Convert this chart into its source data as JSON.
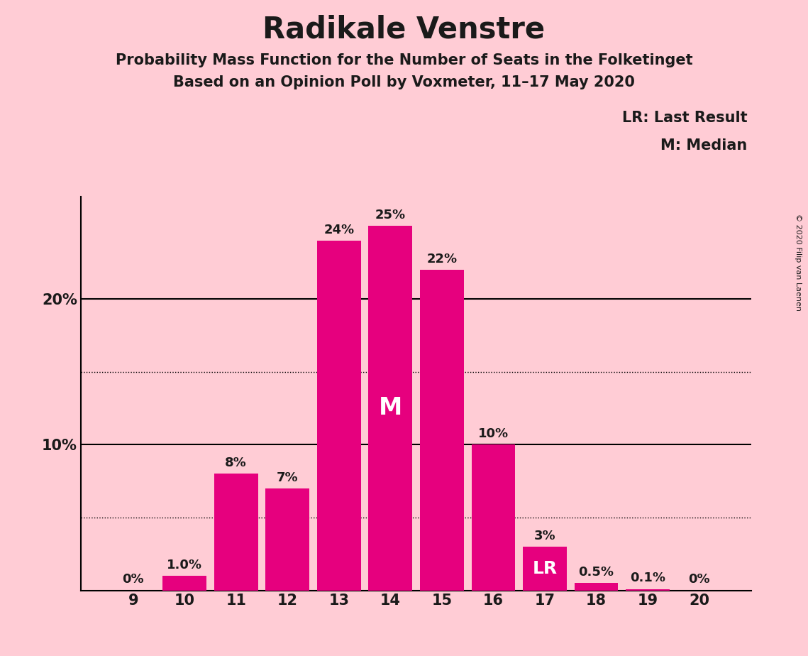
{
  "title": "Radikale Venstre",
  "subtitle1": "Probability Mass Function for the Number of Seats in the Folketinget",
  "subtitle2": "Based on an Opinion Poll by Voxmeter, 11–17 May 2020",
  "copyright": "© 2020 Filip van Laenen",
  "categories": [
    9,
    10,
    11,
    12,
    13,
    14,
    15,
    16,
    17,
    18,
    19,
    20
  ],
  "values": [
    0.0,
    1.0,
    8.0,
    7.0,
    24.0,
    25.0,
    22.0,
    10.0,
    3.0,
    0.5,
    0.1,
    0.0
  ],
  "bar_labels": [
    "0%",
    "1.0%",
    "8%",
    "7%",
    "24%",
    "25%",
    "22%",
    "10%",
    "3%",
    "0.5%",
    "0.1%",
    "0%"
  ],
  "bar_color": "#E6007E",
  "background_color": "#FFCCD5",
  "text_color": "#1a1a1a",
  "median_seat": 14,
  "lr_seat": 17,
  "ylim": [
    0,
    27
  ],
  "dotted_lines": [
    5.0,
    15.0
  ],
  "legend_text": [
    "LR: Last Result",
    "M: Median"
  ],
  "title_fontsize": 30,
  "subtitle_fontsize": 15,
  "label_fontsize": 13,
  "tick_fontsize": 15,
  "legend_fontsize": 15,
  "annotation_color_white": "#FFFFFF",
  "annotation_color_dark": "#1a1a1a"
}
